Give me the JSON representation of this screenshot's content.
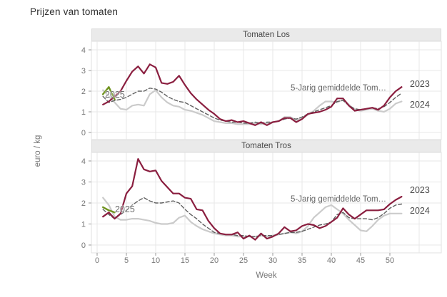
{
  "title": "Prijzen van tomaten",
  "xlabel": "Week",
  "ylabel": "euro / kg",
  "colors": {
    "series_2023": "#8a1e3f",
    "series_2024": "#cbcbcb",
    "series_avg": "#606060",
    "series_2025": "#6f931d",
    "strip_bg": "#eaeaea",
    "grid": "#e7e7e7",
    "tick_text": "#757575"
  },
  "chart_data": [
    {
      "type": "line",
      "title": "Tomaten Los",
      "xlabel": "Week",
      "ylabel": "euro / kg",
      "xlim": [
        0,
        55
      ],
      "ylim": [
        0,
        4.4
      ],
      "xticks": [
        0,
        5,
        10,
        15,
        20,
        25,
        30,
        35,
        40,
        45,
        50
      ],
      "yticks": [
        0,
        1,
        2,
        3,
        4
      ],
      "grid": true,
      "legend_position": "direct-labels-right",
      "labels": {
        "y2025": "2025",
        "avg": "5-Jarig gemiddelde Tom…",
        "y2023": "2023",
        "y2024": "2024"
      },
      "series": [
        {
          "name": "2024",
          "color": "#cbcbcb",
          "dash": false,
          "width": 2.2,
          "x_start": 1,
          "values": [
            2.05,
            1.75,
            1.45,
            1.15,
            1.1,
            1.3,
            1.35,
            1.3,
            1.85,
            2.05,
            1.7,
            1.45,
            1.3,
            1.25,
            1.1,
            1.05,
            0.95,
            0.85,
            0.7,
            0.55,
            0.5,
            0.45,
            0.45,
            0.4,
            0.4,
            0.4,
            0.45,
            0.4,
            0.45,
            0.5,
            0.55,
            0.75,
            0.75,
            0.6,
            0.7,
            0.85,
            1.05,
            1.3,
            1.5,
            1.5,
            1.45,
            1.6,
            1.35,
            1.1,
            1.05,
            1.1,
            1.15,
            1.05,
            1.0,
            1.15,
            1.4,
            1.5
          ]
        },
        {
          "name": "5-Jarig gemiddelde",
          "color": "#606060",
          "dash": true,
          "width": 1.4,
          "x_start": 1,
          "values": [
            1.75,
            1.45,
            1.55,
            1.6,
            1.7,
            1.85,
            2.0,
            2.0,
            2.15,
            2.1,
            1.95,
            1.75,
            1.6,
            1.5,
            1.45,
            1.3,
            1.15,
            1.0,
            0.85,
            0.7,
            0.6,
            0.55,
            0.5,
            0.5,
            0.45,
            0.45,
            0.5,
            0.45,
            0.5,
            0.5,
            0.55,
            0.65,
            0.7,
            0.65,
            0.75,
            0.9,
            1.0,
            1.1,
            1.2,
            1.3,
            1.5,
            1.55,
            1.3,
            1.15,
            1.1,
            1.15,
            1.2,
            1.15,
            1.25,
            1.45,
            1.7,
            1.9
          ]
        },
        {
          "name": "2023",
          "color": "#8a1e3f",
          "dash": false,
          "width": 2.2,
          "x_start": 1,
          "values": [
            1.35,
            1.5,
            1.75,
            2.0,
            2.5,
            2.95,
            3.2,
            2.85,
            3.3,
            3.15,
            2.4,
            2.35,
            2.45,
            2.75,
            2.3,
            1.9,
            1.6,
            1.35,
            1.1,
            0.9,
            0.65,
            0.55,
            0.6,
            0.5,
            0.55,
            0.45,
            0.35,
            0.5,
            0.35,
            0.5,
            0.55,
            0.7,
            0.7,
            0.5,
            0.65,
            0.9,
            0.95,
            1.0,
            1.1,
            1.25,
            1.65,
            1.65,
            1.3,
            1.05,
            1.1,
            1.15,
            1.2,
            1.1,
            1.3,
            1.7,
            2.0,
            2.2
          ]
        },
        {
          "name": "2025",
          "color": "#6f931d",
          "dash": false,
          "width": 2.4,
          "x_start": 1,
          "values": [
            1.85,
            2.2,
            1.6
          ]
        }
      ]
    },
    {
      "type": "line",
      "title": "Tomaten Tros",
      "xlabel": "Week",
      "ylabel": "euro / kg",
      "xlim": [
        0,
        55
      ],
      "ylim": [
        0,
        4.4
      ],
      "xticks": [
        0,
        5,
        10,
        15,
        20,
        25,
        30,
        35,
        40,
        45,
        50
      ],
      "yticks": [
        0,
        1,
        2,
        3,
        4
      ],
      "grid": true,
      "legend_position": "direct-labels-right",
      "labels": {
        "y2025": "2025",
        "avg": "5-Jarig gemiddelde Tom…",
        "y2023": "2023",
        "y2024": "2024"
      },
      "series": [
        {
          "name": "2024",
          "color": "#cbcbcb",
          "dash": false,
          "width": 2.2,
          "x_start": 1,
          "values": [
            2.25,
            1.9,
            1.35,
            1.2,
            1.2,
            1.25,
            1.25,
            1.2,
            1.15,
            1.05,
            1.0,
            1.0,
            1.05,
            1.3,
            1.4,
            1.1,
            0.9,
            0.75,
            0.65,
            0.55,
            0.5,
            0.45,
            0.45,
            0.4,
            0.4,
            0.4,
            0.4,
            0.45,
            0.4,
            0.45,
            0.5,
            0.55,
            0.6,
            0.55,
            0.65,
            0.9,
            1.3,
            1.55,
            1.8,
            1.9,
            1.7,
            1.5,
            1.2,
            0.95,
            0.7,
            0.65,
            0.9,
            1.2,
            1.4,
            1.5,
            1.5,
            1.5
          ]
        },
        {
          "name": "5-Jarig gemiddelde",
          "color": "#606060",
          "dash": true,
          "width": 1.4,
          "x_start": 1,
          "values": [
            1.7,
            1.45,
            1.25,
            1.45,
            1.65,
            1.9,
            2.1,
            2.25,
            2.1,
            2.0,
            2.0,
            2.05,
            2.1,
            2.0,
            1.7,
            1.45,
            1.25,
            1.0,
            0.8,
            0.6,
            0.55,
            0.5,
            0.5,
            0.45,
            0.45,
            0.4,
            0.4,
            0.45,
            0.45,
            0.45,
            0.5,
            0.55,
            0.6,
            0.6,
            0.65,
            0.75,
            0.85,
            0.95,
            1.0,
            1.1,
            1.45,
            1.55,
            1.3,
            1.25,
            1.25,
            1.25,
            1.2,
            1.3,
            1.5,
            1.75,
            1.9,
            1.95
          ]
        },
        {
          "name": "2023",
          "color": "#8a1e3f",
          "dash": false,
          "width": 2.2,
          "x_start": 1,
          "values": [
            1.35,
            1.55,
            1.25,
            1.5,
            2.45,
            2.8,
            4.1,
            3.6,
            3.5,
            3.55,
            3.05,
            2.75,
            2.45,
            2.45,
            2.25,
            2.2,
            1.7,
            1.65,
            1.15,
            0.8,
            0.55,
            0.5,
            0.5,
            0.6,
            0.3,
            0.45,
            0.25,
            0.55,
            0.3,
            0.4,
            0.55,
            0.85,
            0.65,
            0.7,
            0.9,
            1.0,
            0.95,
            0.8,
            0.9,
            1.1,
            1.3,
            1.75,
            1.45,
            1.25,
            1.45,
            1.65,
            1.65,
            1.65,
            1.7,
            1.95,
            2.15,
            2.3
          ]
        },
        {
          "name": "2025",
          "color": "#6f931d",
          "dash": false,
          "width": 2.4,
          "x_start": 1,
          "values": [
            1.8,
            1.65,
            1.55
          ]
        }
      ]
    }
  ]
}
